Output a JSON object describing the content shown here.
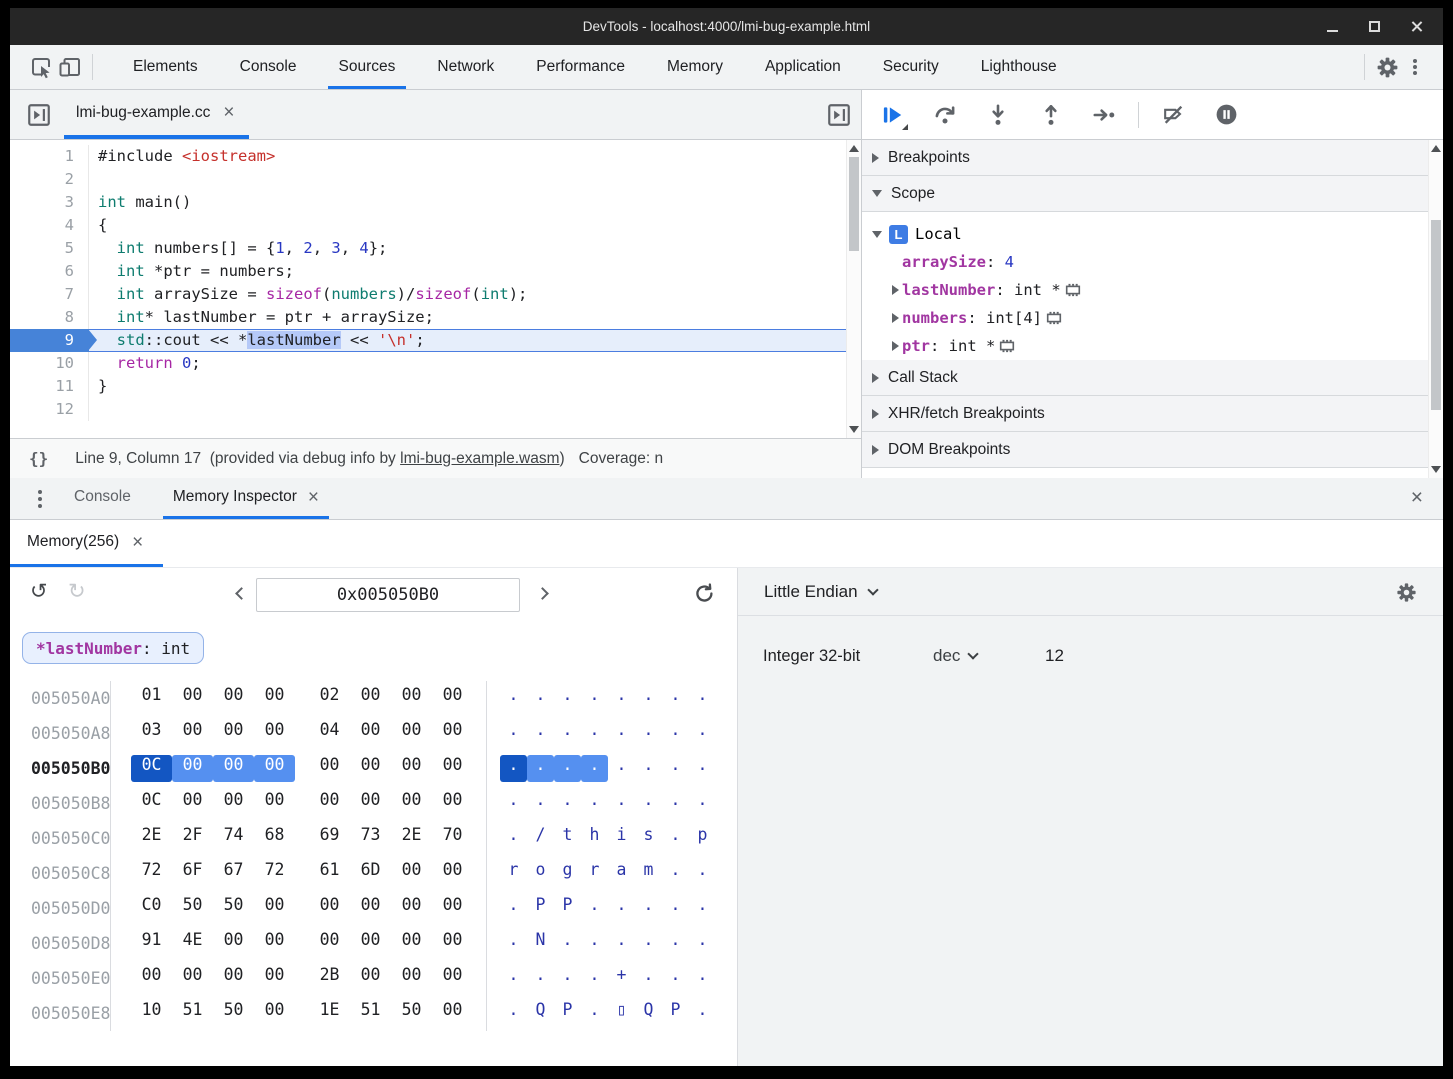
{
  "window": {
    "title": "DevTools - localhost:4000/lmi-bug-example.html"
  },
  "colors": {
    "accent": "#1a73e8",
    "titlebar": "#262626",
    "toolbar_bg": "#f1f3f4",
    "selection_primary": "#1356c2",
    "selection_secondary": "#5590f0"
  },
  "icons": {
    "close_glyph": "×",
    "undo_glyph": "↺",
    "redo_glyph": "↻",
    "brackets_glyph": "{}",
    "names": [
      "inspect-icon",
      "device-toolbar-icon",
      "settings-icon",
      "more-menu-icon",
      "resume-icon",
      "step-over-icon",
      "step-into-icon",
      "step-out-icon",
      "step-icon",
      "deactivate-breakpoints-icon",
      "pause-on-exceptions-icon",
      "navigator-toggle-icon",
      "debugger-sidebar-toggle-icon",
      "undo-icon",
      "redo-icon",
      "prev-address-icon",
      "next-address-icon",
      "refresh-icon",
      "memory-chip-icon",
      "gear-icon",
      "close-icon"
    ]
  },
  "toolbar": {
    "tabs": [
      {
        "label": "Elements",
        "active": false
      },
      {
        "label": "Console",
        "active": false
      },
      {
        "label": "Sources",
        "active": true
      },
      {
        "label": "Network",
        "active": false
      },
      {
        "label": "Performance",
        "active": false
      },
      {
        "label": "Memory",
        "active": false
      },
      {
        "label": "Application",
        "active": false
      },
      {
        "label": "Security",
        "active": false
      },
      {
        "label": "Lighthouse",
        "active": false
      }
    ]
  },
  "sources": {
    "file_tab": "lmi-bug-example.cc",
    "editor": {
      "lines": [
        {
          "n": 1,
          "tokens": [
            [
              "#include ",
              "d"
            ],
            [
              "<iostream>",
              "s"
            ]
          ]
        },
        {
          "n": 2,
          "tokens": []
        },
        {
          "n": 3,
          "tokens": [
            [
              "int",
              "t"
            ],
            [
              " main()",
              "d"
            ]
          ]
        },
        {
          "n": 4,
          "tokens": [
            [
              "{",
              "d"
            ]
          ]
        },
        {
          "n": 5,
          "tokens": [
            [
              "  ",
              "d"
            ],
            [
              "int",
              "t"
            ],
            [
              " numbers[] = {",
              "d"
            ],
            [
              "1",
              "n"
            ],
            [
              ", ",
              "d"
            ],
            [
              "2",
              "n"
            ],
            [
              ", ",
              "d"
            ],
            [
              "3",
              "n"
            ],
            [
              ", ",
              "d"
            ],
            [
              "4",
              "n"
            ],
            [
              "};",
              "d"
            ]
          ]
        },
        {
          "n": 6,
          "tokens": [
            [
              "  ",
              "d"
            ],
            [
              "int",
              "t"
            ],
            [
              " *ptr = numbers;",
              "d"
            ]
          ]
        },
        {
          "n": 7,
          "tokens": [
            [
              "  ",
              "d"
            ],
            [
              "int",
              "t"
            ],
            [
              " arraySize = ",
              "d"
            ],
            [
              "sizeof",
              "k"
            ],
            [
              "(",
              "d"
            ],
            [
              "numbers",
              "t"
            ],
            [
              ")/",
              "d"
            ],
            [
              "sizeof",
              "k"
            ],
            [
              "(",
              "d"
            ],
            [
              "int",
              "t"
            ],
            [
              ");",
              "d"
            ]
          ]
        },
        {
          "n": 8,
          "tokens": [
            [
              "  ",
              "d"
            ],
            [
              "int",
              "t"
            ],
            [
              "* lastNumber = ptr + arraySize;",
              "d"
            ]
          ]
        },
        {
          "n": 9,
          "current": true,
          "tokens": [
            [
              "  ",
              "d"
            ],
            [
              "std",
              "t"
            ],
            [
              "::cout << *",
              "d"
            ],
            [
              "lastNumber",
              "sel"
            ],
            [
              " << ",
              "d"
            ],
            [
              "'\\n'",
              "s"
            ],
            [
              ";",
              "d"
            ]
          ]
        },
        {
          "n": 10,
          "tokens": [
            [
              "  ",
              "d"
            ],
            [
              "return",
              "k"
            ],
            [
              " ",
              "d"
            ],
            [
              "0",
              "n"
            ],
            [
              ";",
              "d"
            ]
          ]
        },
        {
          "n": 11,
          "tokens": [
            [
              "}",
              "d"
            ]
          ]
        },
        {
          "n": 12,
          "tokens": []
        }
      ]
    },
    "status": {
      "position": "Line 9, Column 17",
      "info_prefix": "  (provided via debug info by ",
      "link": "lmi-bug-example.wasm",
      "info_suffix": ")",
      "coverage": "Coverage: n"
    }
  },
  "debugger": {
    "sections": {
      "breakpoints": "Breakpoints",
      "scope": "Scope",
      "call_stack": "Call Stack",
      "xhr": "XHR/fetch Breakpoints",
      "dom": "DOM Breakpoints"
    },
    "scope": {
      "badge": "L",
      "group": "Local",
      "vars": [
        {
          "name": "arraySize",
          "sep": ": ",
          "value": "4",
          "kind": "num",
          "expandable": false,
          "mem": false
        },
        {
          "name": "lastNumber",
          "sep": ": ",
          "value": "int *",
          "kind": "type",
          "expandable": true,
          "mem": true
        },
        {
          "name": "numbers",
          "sep": ": ",
          "value": "int[4]",
          "kind": "type",
          "expandable": true,
          "mem": true
        },
        {
          "name": "ptr",
          "sep": ": ",
          "value": "int *",
          "kind": "type",
          "expandable": true,
          "mem": true
        }
      ]
    }
  },
  "drawer": {
    "tabs": [
      {
        "label": "Console",
        "active": false,
        "closable": false
      },
      {
        "label": "Memory Inspector",
        "active": true,
        "closable": true
      }
    ]
  },
  "memory": {
    "tab": "Memory(256)",
    "address": "0x005050B0",
    "chip_label": "*lastNumber",
    "chip_type": ": int",
    "rows": [
      {
        "addr": "005050A0",
        "bytes": [
          "01",
          "00",
          "00",
          "00",
          "02",
          "00",
          "00",
          "00"
        ],
        "ascii": [
          ".",
          ".",
          ".",
          ".",
          ".",
          ".",
          ".",
          "."
        ]
      },
      {
        "addr": "005050A8",
        "bytes": [
          "03",
          "00",
          "00",
          "00",
          "04",
          "00",
          "00",
          "00"
        ],
        "ascii": [
          ".",
          ".",
          ".",
          ".",
          ".",
          ".",
          ".",
          "."
        ]
      },
      {
        "addr": "005050B0",
        "selected": true,
        "hl": [
          2,
          1,
          1,
          1,
          0,
          0,
          0,
          0
        ],
        "bytes": [
          "0C",
          "00",
          "00",
          "00",
          "00",
          "00",
          "00",
          "00"
        ],
        "ascii": [
          ".",
          ".",
          ".",
          ".",
          ".",
          ".",
          ".",
          "."
        ]
      },
      {
        "addr": "005050B8",
        "bytes": [
          "0C",
          "00",
          "00",
          "00",
          "00",
          "00",
          "00",
          "00"
        ],
        "ascii": [
          ".",
          ".",
          ".",
          ".",
          ".",
          ".",
          ".",
          "."
        ]
      },
      {
        "addr": "005050C0",
        "bytes": [
          "2E",
          "2F",
          "74",
          "68",
          "69",
          "73",
          "2E",
          "70"
        ],
        "ascii": [
          ".",
          "/",
          "t",
          "h",
          "i",
          "s",
          ".",
          "p"
        ]
      },
      {
        "addr": "005050C8",
        "bytes": [
          "72",
          "6F",
          "67",
          "72",
          "61",
          "6D",
          "00",
          "00"
        ],
        "ascii": [
          "r",
          "o",
          "g",
          "r",
          "a",
          "m",
          ".",
          "."
        ]
      },
      {
        "addr": "005050D0",
        "bytes": [
          "C0",
          "50",
          "50",
          "00",
          "00",
          "00",
          "00",
          "00"
        ],
        "ascii": [
          ".",
          "P",
          "P",
          ".",
          ".",
          ".",
          ".",
          "."
        ]
      },
      {
        "addr": "005050D8",
        "bytes": [
          "91",
          "4E",
          "00",
          "00",
          "00",
          "00",
          "00",
          "00"
        ],
        "ascii": [
          ".",
          "N",
          ".",
          ".",
          ".",
          ".",
          ".",
          "."
        ]
      },
      {
        "addr": "005050E0",
        "bytes": [
          "00",
          "00",
          "00",
          "00",
          "2B",
          "00",
          "00",
          "00"
        ],
        "ascii": [
          ".",
          ".",
          ".",
          ".",
          "+",
          ".",
          ".",
          "."
        ]
      },
      {
        "addr": "005050E8",
        "bytes": [
          "10",
          "51",
          "50",
          "00",
          "1E",
          "51",
          "50",
          "00"
        ],
        "ascii": [
          ".",
          "Q",
          "P",
          ".",
          "▯",
          "Q",
          "P",
          "."
        ]
      }
    ],
    "interpreter": {
      "endianness": "Little Endian",
      "type": "Integer 32-bit",
      "format": "dec",
      "value": "12"
    }
  }
}
